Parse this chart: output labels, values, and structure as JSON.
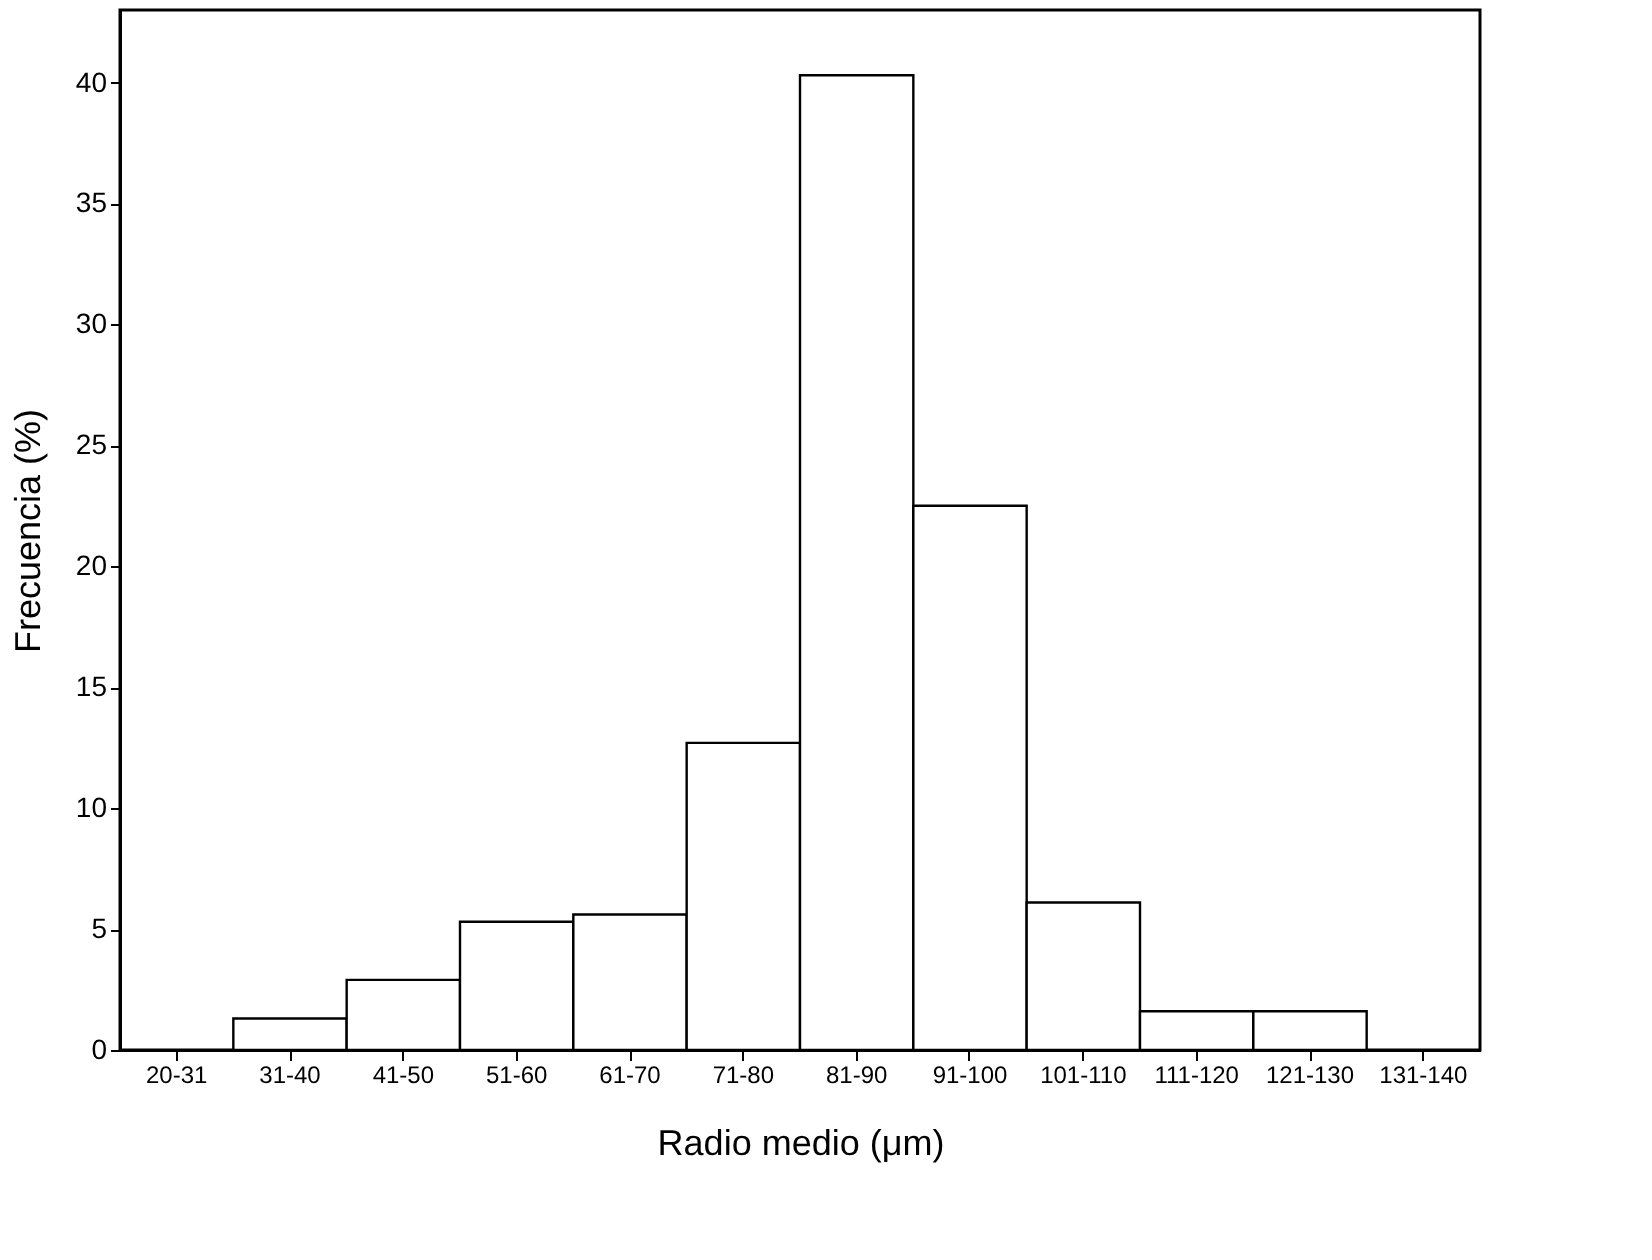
{
  "chart_data": {
    "type": "bar",
    "xlabel": "Radio medio (μm)",
    "ylabel": "Frecuencia (%)",
    "categories": [
      "20-31",
      "31-40",
      "41-50",
      "51-60",
      "61-70",
      "71-80",
      "81-90",
      "91-100",
      "101-110",
      "111-120",
      "121-130",
      "131-140"
    ],
    "values": [
      null,
      1.3,
      2.9,
      5.3,
      5.6,
      12.7,
      40.3,
      22.5,
      6.1,
      1.6,
      1.6,
      null
    ],
    "color": "#ffffff",
    "ylim": [
      0,
      43
    ],
    "yticks": [
      0,
      5,
      10,
      15,
      20,
      25,
      30,
      35,
      40
    ],
    "grid": false
  }
}
